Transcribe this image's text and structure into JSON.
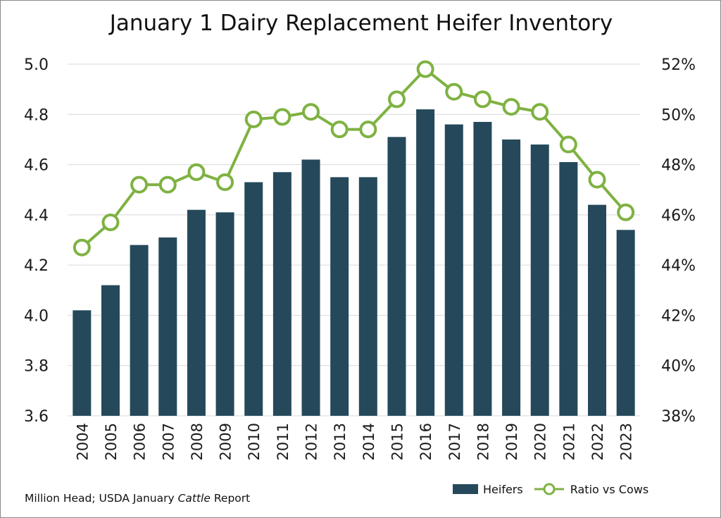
{
  "chart_data": {
    "type": "bar",
    "title": "January 1 Dairy Replacement Heifer Inventory",
    "categories": [
      "2004",
      "2005",
      "2006",
      "2007",
      "2008",
      "2009",
      "2010",
      "2011",
      "2012",
      "2013",
      "2014",
      "2015",
      "2016",
      "2017",
      "2018",
      "2019",
      "2020",
      "2021",
      "2022",
      "2023"
    ],
    "series": [
      {
        "name": "Heifers",
        "type": "bar",
        "axis": "left",
        "values": [
          4.02,
          4.12,
          4.28,
          4.31,
          4.42,
          4.41,
          4.53,
          4.57,
          4.62,
          4.55,
          4.55,
          4.71,
          4.82,
          4.76,
          4.77,
          4.7,
          4.68,
          4.61,
          4.44,
          4.34
        ]
      },
      {
        "name": "Ratio vs Cows",
        "type": "line",
        "axis": "right",
        "values": [
          44.7,
          45.7,
          47.2,
          47.2,
          47.7,
          47.3,
          49.8,
          49.9,
          50.1,
          49.4,
          49.4,
          50.6,
          51.8,
          50.9,
          50.6,
          50.3,
          50.1,
          48.8,
          47.4,
          46.1
        ]
      }
    ],
    "ylim": [
      3.6,
      5.0
    ],
    "y_ticks": [
      "3.6",
      "3.8",
      "4.0",
      "4.2",
      "4.4",
      "4.6",
      "4.8",
      "5.0"
    ],
    "y2lim": [
      38,
      52
    ],
    "y2_ticks": [
      "38%",
      "40%",
      "42%",
      "44%",
      "46%",
      "48%",
      "50%",
      "52%"
    ],
    "grid": true,
    "legend": "bottom-right"
  },
  "footnote": {
    "prefix": "Million Head; USDA January ",
    "italic": "Cattle",
    "suffix": " Report"
  },
  "legend": {
    "bar_label": "Heifers",
    "line_label": "Ratio vs Cows"
  },
  "colors": {
    "bar": "#25495a",
    "line": "#7fb242",
    "grid": "#d9d9d9"
  }
}
